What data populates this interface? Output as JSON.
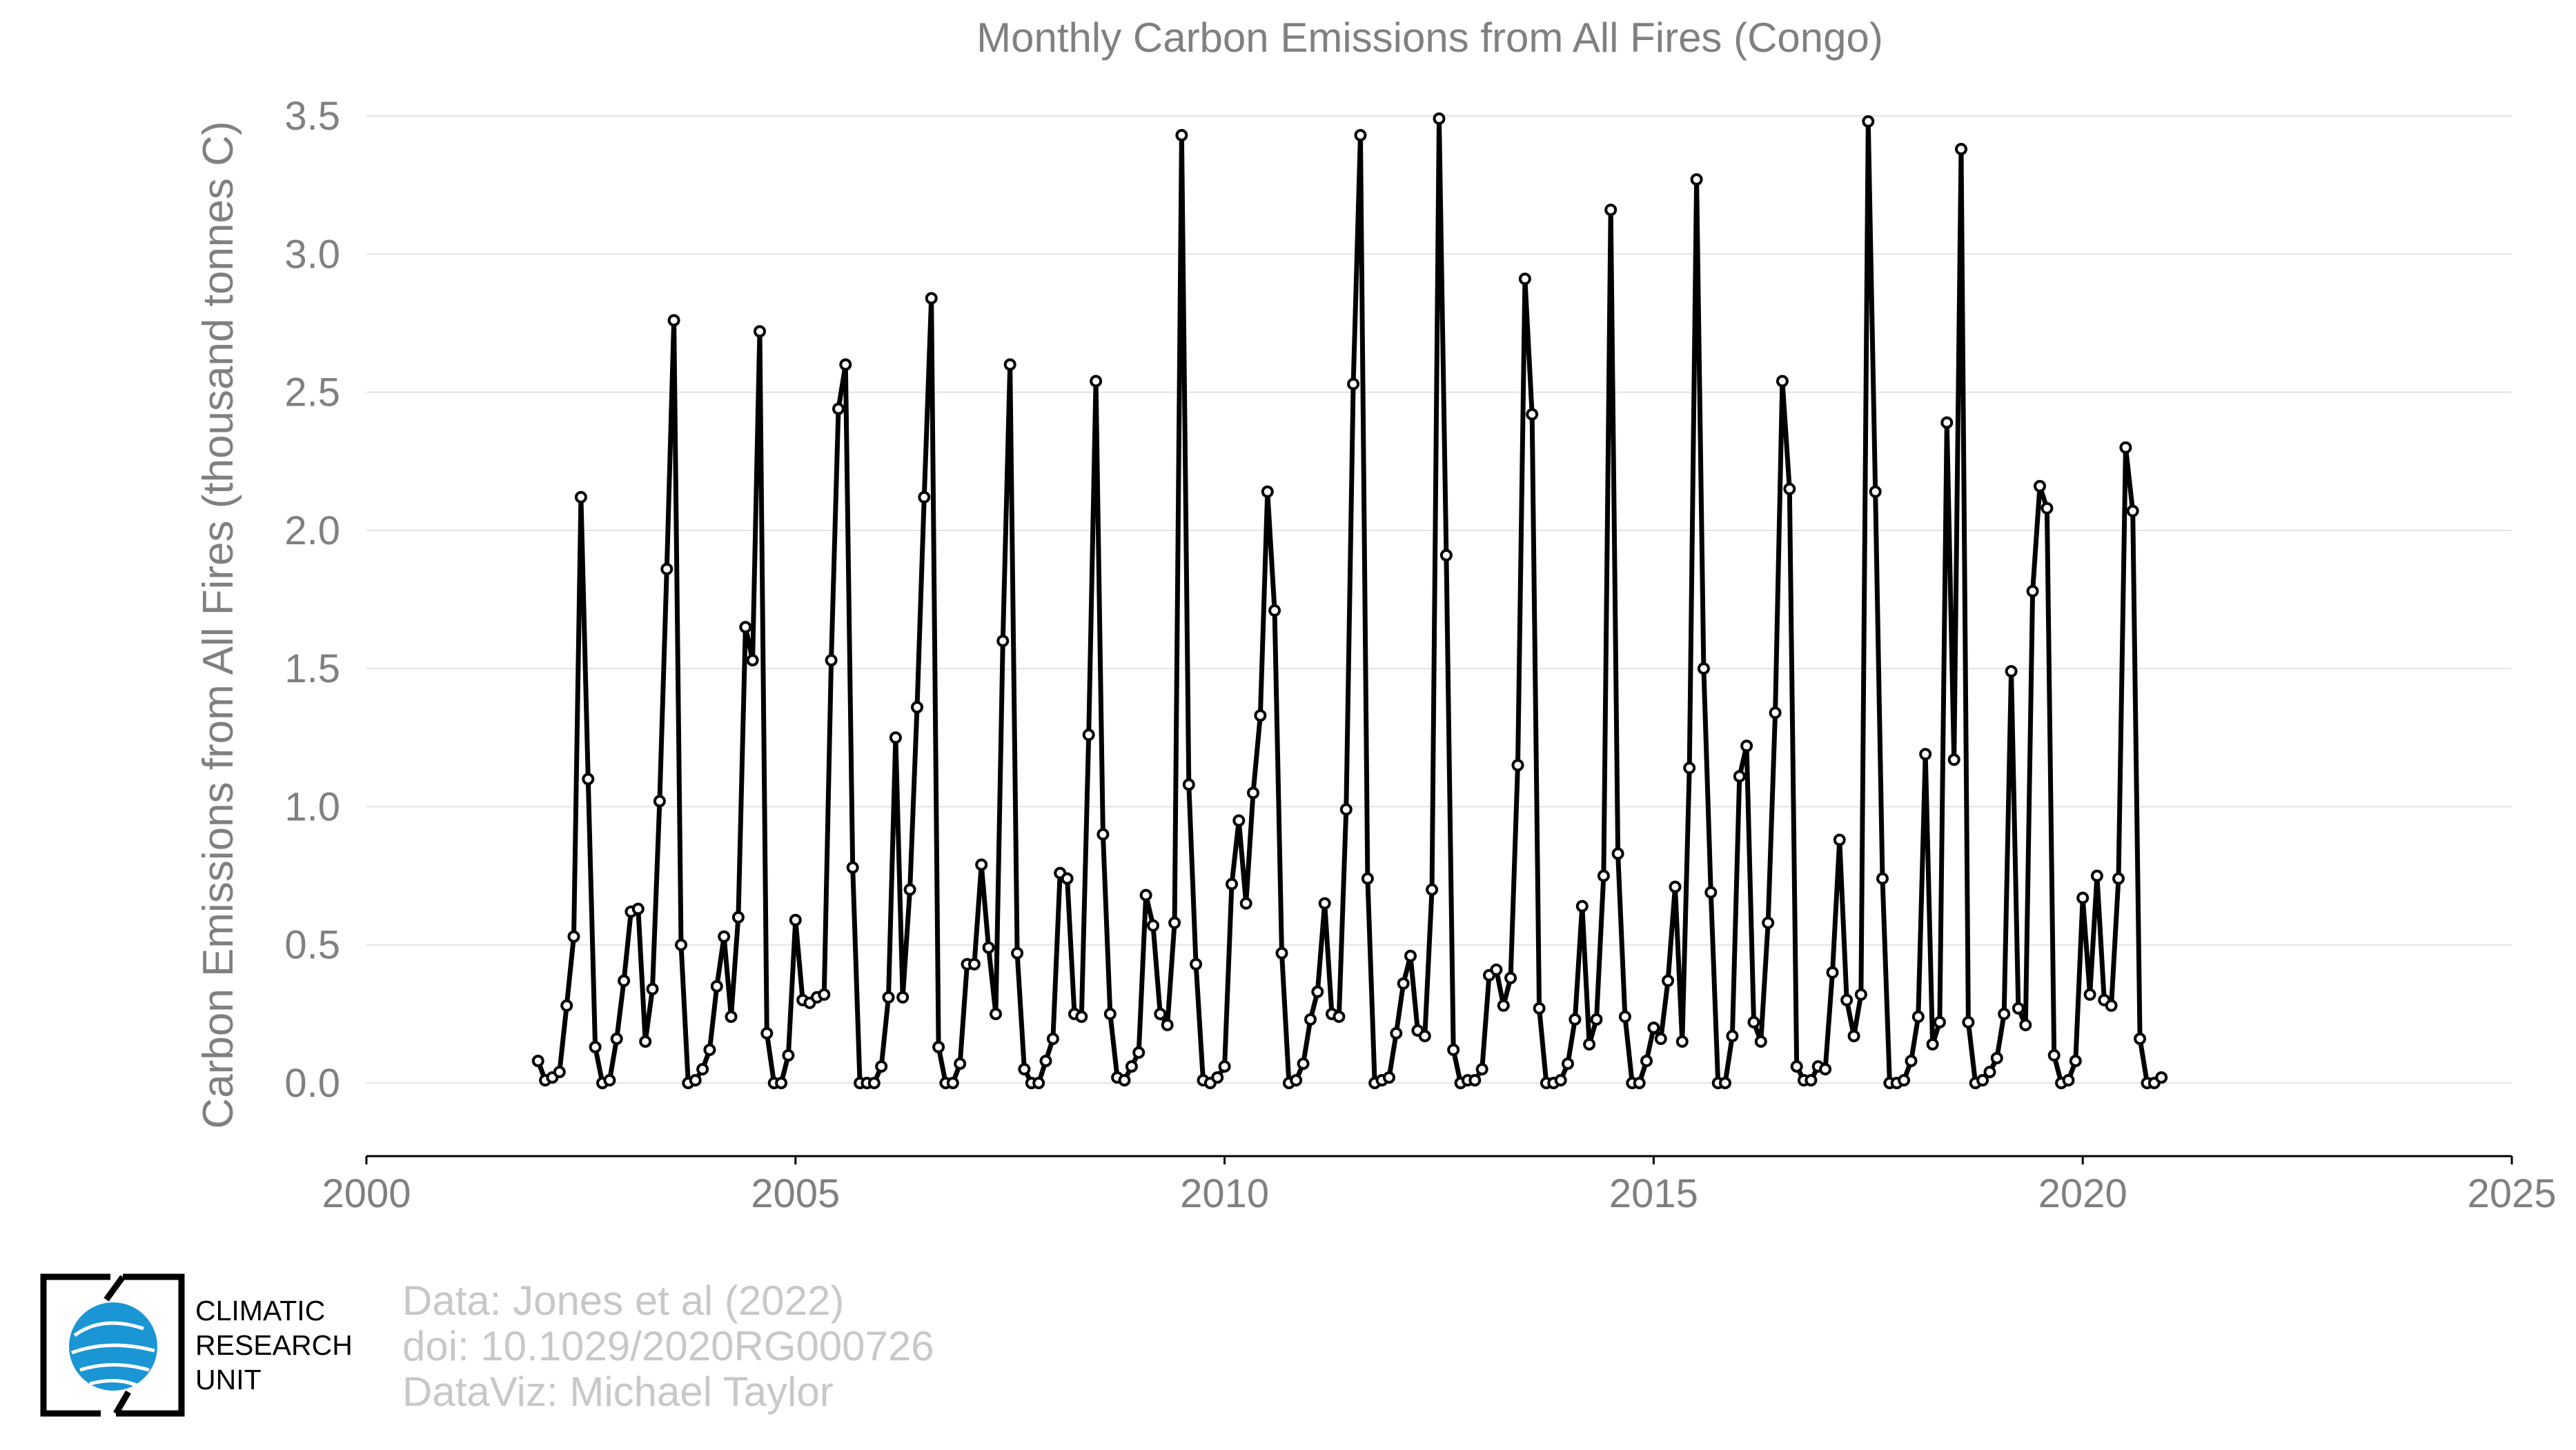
{
  "chart_data": {
    "type": "line",
    "title": "Monthly Carbon Emissions from All Fires (Congo)",
    "xlabel": "",
    "ylabel": "Carbon Emissions from All Fires (thousand tonnes C)",
    "xlim": [
      2000,
      2025
    ],
    "ylim": [
      -0.28,
      3.5
    ],
    "xticks": [
      "2000",
      "2005",
      "2010",
      "2015",
      "2020",
      "2025"
    ],
    "yticks": [
      "0.0",
      "0.5",
      "1.0",
      "1.5",
      "2.0",
      "2.5",
      "3.0",
      "3.5"
    ],
    "grid": "horizontal",
    "line_color": "#000000",
    "marker_face": "#ffffff",
    "series": [
      {
        "x_start": 2002.0,
        "x_step": 0.083333,
        "values": [
          0.08,
          0.01,
          0.02,
          0.04,
          0.28,
          0.53,
          2.12,
          1.1,
          0.13,
          0.0,
          0.01,
          0.16,
          0.37,
          0.62,
          0.63,
          0.15,
          0.34,
          1.02,
          1.86,
          2.76,
          0.5,
          0.0,
          0.01,
          0.05,
          0.12,
          0.35,
          0.53,
          0.24,
          0.6,
          1.65,
          1.53,
          2.72,
          0.18,
          0.0,
          0.0,
          0.1,
          0.59,
          0.3,
          0.29,
          0.31,
          0.32,
          1.53,
          2.44,
          2.6,
          0.78,
          0.0,
          0.0,
          0.0,
          0.06,
          0.31,
          1.25,
          0.31,
          0.7,
          1.36,
          2.12,
          2.84,
          0.13,
          0.0,
          0.0,
          0.07,
          0.43,
          0.43,
          0.79,
          0.49,
          0.25,
          1.6,
          2.6,
          0.47,
          0.05,
          0.0,
          0.0,
          0.08,
          0.16,
          0.76,
          0.74,
          0.25,
          0.24,
          1.26,
          2.54,
          0.9,
          0.25,
          0.02,
          0.01,
          0.06,
          0.11,
          0.68,
          0.57,
          0.25,
          0.21,
          0.58,
          3.43,
          1.08,
          0.43,
          0.01,
          0.0,
          0.02,
          0.06,
          0.72,
          0.95,
          0.65,
          1.05,
          1.33,
          2.14,
          1.71,
          0.47,
          0.0,
          0.01,
          0.07,
          0.23,
          0.33,
          0.65,
          0.25,
          0.24,
          0.99,
          2.53,
          3.43,
          0.74,
          0.0,
          0.01,
          0.02,
          0.18,
          0.36,
          0.46,
          0.19,
          0.17,
          0.7,
          3.49,
          1.91,
          0.12,
          0.0,
          0.01,
          0.01,
          0.05,
          0.39,
          0.41,
          0.28,
          0.38,
          1.15,
          2.91,
          2.42,
          0.27,
          0.0,
          0.0,
          0.01,
          0.07,
          0.23,
          0.64,
          0.14,
          0.23,
          0.75,
          3.16,
          0.83,
          0.24,
          0.0,
          0.0,
          0.08,
          0.2,
          0.16,
          0.37,
          0.71,
          0.15,
          1.14,
          3.27,
          1.5,
          0.69,
          0.0,
          0.0,
          0.17,
          1.11,
          1.22,
          0.22,
          0.15,
          0.58,
          1.34,
          2.54,
          2.15,
          0.06,
          0.01,
          0.01,
          0.06,
          0.05,
          0.4,
          0.88,
          0.3,
          0.17,
          0.32,
          3.48,
          2.14,
          0.74,
          0.0,
          0.0,
          0.01,
          0.08,
          0.24,
          1.19,
          0.14,
          0.22,
          2.39,
          1.17,
          3.38,
          0.22,
          0.0,
          0.01,
          0.04,
          0.09,
          0.25,
          1.49,
          0.27,
          0.21,
          1.78,
          2.16,
          2.08,
          0.1,
          0.0,
          0.01,
          0.08,
          0.67,
          0.32,
          0.75,
          0.3,
          0.28,
          0.74,
          2.3,
          2.07,
          0.16,
          0.0,
          0.0,
          0.02
        ]
      }
    ]
  },
  "credits": {
    "line1": "Data: Jones et al (2022)",
    "line2": "doi: 10.1029/2020RG000726",
    "line3": "DataViz: Michael Taylor"
  },
  "logo": {
    "line1": "CLIMATIC",
    "line2": "RESEARCH",
    "line3": "UNIT",
    "globe_color": "#1a96d4"
  }
}
